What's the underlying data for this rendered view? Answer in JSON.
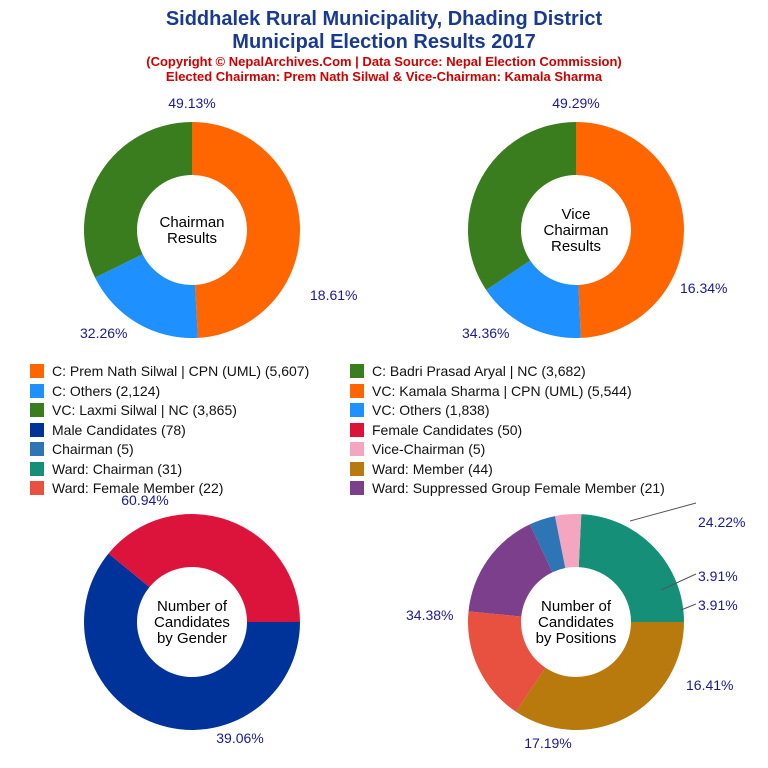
{
  "header": {
    "title_line1": "Siddhalek Rural Municipality, Dhading District",
    "title_line2": "Municipal Election Results 2017",
    "subtitle_line1": "(Copyright © NepalArchives.Com | Data Source: Nepal Election Commission)",
    "subtitle_line2": "Elected Chairman: Prem Nath Silwal & Vice-Chairman: Kamala Sharma"
  },
  "legend": [
    {
      "label": "C: Prem Nath Silwal | CPN (UML) (5,607)",
      "color": "#ff6600"
    },
    {
      "label": "C: Badri Prasad Aryal | NC (3,682)",
      "color": "#3a7d1e"
    },
    {
      "label": "C: Others (2,124)",
      "color": "#1e90ff"
    },
    {
      "label": "VC: Kamala Sharma | CPN (UML) (5,544)",
      "color": "#ff6600"
    },
    {
      "label": "VC: Laxmi Silwal | NC (3,865)",
      "color": "#3a7d1e"
    },
    {
      "label": "VC: Others (1,838)",
      "color": "#1e90ff"
    },
    {
      "label": "Male Candidates (78)",
      "color": "#003399"
    },
    {
      "label": "Female Candidates (50)",
      "color": "#dc143c"
    },
    {
      "label": "Chairman (5)",
      "color": "#2e75b6"
    },
    {
      "label": "Vice-Chairman (5)",
      "color": "#f4a6c0"
    },
    {
      "label": "Ward: Chairman (31)",
      "color": "#168f78"
    },
    {
      "label": "Ward: Member (44)",
      "color": "#b8790d"
    },
    {
      "label": "Ward: Female Member (22)",
      "color": "#e8503f"
    },
    {
      "label": "Ward: Suppressed Group Female Member (21)",
      "color": "#7b3f8c"
    }
  ],
  "chart_data": [
    {
      "type": "pie",
      "title": "",
      "center_label": "Chairman\nResults",
      "slices": [
        {
          "label": "C: Prem Nath Silwal | CPN (UML)",
          "value": 5607,
          "percent": "49.13%",
          "color": "#ff6600"
        },
        {
          "label": "C: Others",
          "value": 2124,
          "percent": "18.61%",
          "color": "#1e90ff"
        },
        {
          "label": "C: Badri Prasad Aryal | NC",
          "value": 3682,
          "percent": "32.26%",
          "color": "#3a7d1e"
        }
      ]
    },
    {
      "type": "pie",
      "title": "",
      "center_label": "Vice\nChairman\nResults",
      "slices": [
        {
          "label": "VC: Kamala Sharma | CPN (UML)",
          "value": 5544,
          "percent": "49.29%",
          "color": "#ff6600"
        },
        {
          "label": "VC: Others",
          "value": 1838,
          "percent": "16.34%",
          "color": "#1e90ff"
        },
        {
          "label": "VC: Laxmi Silwal | NC",
          "value": 3865,
          "percent": "34.36%",
          "color": "#3a7d1e"
        }
      ]
    },
    {
      "type": "pie",
      "title": "",
      "center_label": "Number of\nCandidates\nby Gender",
      "slices": [
        {
          "label": "Male Candidates",
          "value": 78,
          "percent": "60.94%",
          "color": "#003399"
        },
        {
          "label": "Female Candidates",
          "value": 50,
          "percent": "39.06%",
          "color": "#dc143c"
        }
      ]
    },
    {
      "type": "pie",
      "title": "",
      "center_label": "Number of\nCandidates\nby Positions",
      "slices": [
        {
          "label": "Ward: Chairman",
          "value": 31,
          "percent": "24.22%",
          "color": "#168f78"
        },
        {
          "label": "Vice-Chairman",
          "value": 5,
          "percent": "3.91%",
          "color": "#f4a6c0"
        },
        {
          "label": "Chairman",
          "value": 5,
          "percent": "3.91%",
          "color": "#2e75b6"
        },
        {
          "label": "Ward: Suppressed Group Female Member",
          "value": 21,
          "percent": "16.41%",
          "color": "#7b3f8c"
        },
        {
          "label": "Ward: Female Member",
          "value": 22,
          "percent": "17.19%",
          "color": "#e8503f"
        },
        {
          "label": "Ward: Member",
          "value": 44,
          "percent": "34.38%",
          "color": "#b8790d"
        }
      ]
    }
  ]
}
